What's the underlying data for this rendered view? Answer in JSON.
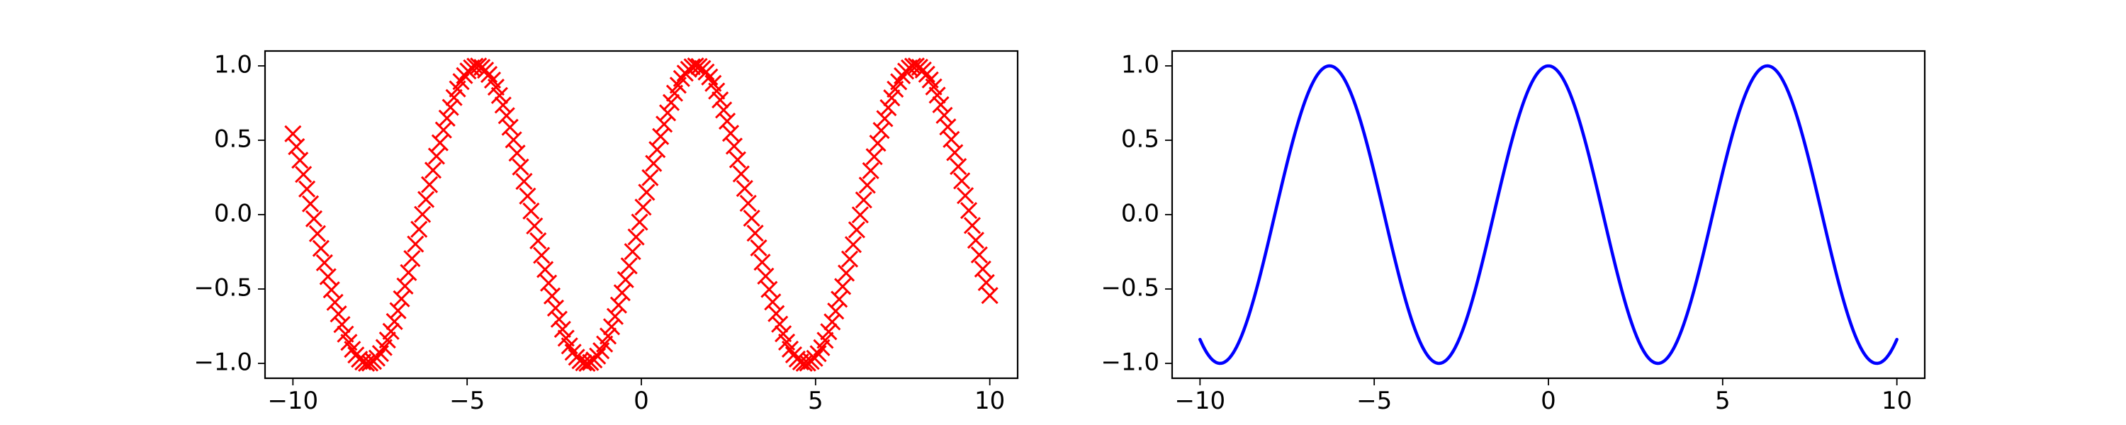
{
  "chart_data": [
    {
      "type": "scatter",
      "title": "",
      "xlabel": "",
      "ylabel": "",
      "xlim": [
        -10.8,
        10.8
      ],
      "ylim": [
        -1.1,
        1.1
      ],
      "x_ticks": [
        -10,
        -5,
        0,
        5,
        10
      ],
      "x_tick_labels": [
        "−10",
        "−5",
        "0",
        "5",
        "10"
      ],
      "y_ticks": [
        -1.0,
        -0.5,
        0.0,
        0.5,
        1.0
      ],
      "y_tick_labels": [
        "−1.0",
        "−0.5",
        "0.0",
        "0.5",
        "1.0"
      ],
      "grid": false,
      "series": [
        {
          "function": "sin",
          "x_start": -10,
          "x_end": 10,
          "point_count": 200,
          "marker": "x",
          "color": "#ff0000"
        }
      ]
    },
    {
      "type": "line",
      "title": "",
      "xlabel": "",
      "ylabel": "",
      "xlim": [
        -10.8,
        10.8
      ],
      "ylim": [
        -1.1,
        1.1
      ],
      "x_ticks": [
        -10,
        -5,
        0,
        5,
        10
      ],
      "x_tick_labels": [
        "−10",
        "−5",
        "0",
        "5",
        "10"
      ],
      "y_ticks": [
        -1.0,
        -0.5,
        0.0,
        0.5,
        1.0
      ],
      "y_tick_labels": [
        "−1.0",
        "−0.5",
        "0.0",
        "0.5",
        "1.0"
      ],
      "grid": false,
      "series": [
        {
          "function": "cos",
          "x_start": -10,
          "x_end": 10,
          "point_count": 400,
          "marker": "none",
          "color": "#0000ff"
        }
      ]
    }
  ]
}
